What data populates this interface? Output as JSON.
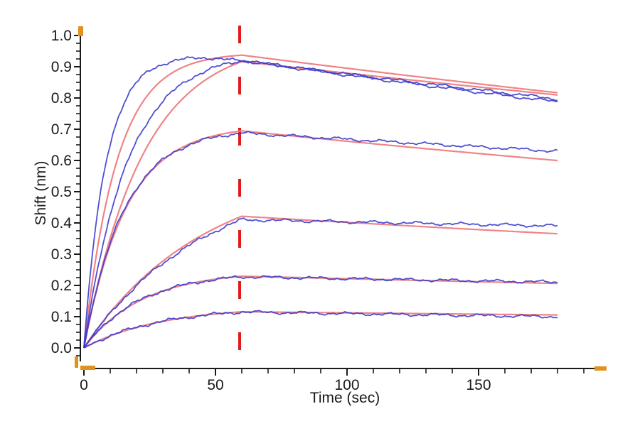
{
  "chart_data": {
    "type": "line",
    "title": "",
    "xlabel": "Time (sec)",
    "ylabel": "Shift (nm)",
    "xlim": [
      0,
      198
    ],
    "ylim": [
      -0.04,
      1.02
    ],
    "grid": "off",
    "legend": "none",
    "x_major_ticks": [
      0,
      50,
      100,
      150
    ],
    "x_tick_labels": [
      "0",
      "50",
      "100",
      "150"
    ],
    "x_minor_step": 10,
    "x_minor_max": 190,
    "y_major_ticks": [
      0,
      0.1,
      0.2,
      0.3,
      0.4,
      0.5,
      0.6,
      0.7,
      0.8,
      0.9,
      1.0
    ],
    "y_tick_labels": [
      "0.0",
      "0.1",
      "0.2",
      "0.3",
      "0.4",
      "0.5",
      "0.6",
      "0.7",
      "0.8",
      "0.9",
      "1.0"
    ],
    "y_minor_step": 0.025,
    "association_end_sec": 60,
    "time_end_sec": 180,
    "marker_line": {
      "time_sec": 60,
      "style": "dashed",
      "color": "#e31a1a"
    },
    "colors": {
      "data_trace": "#3c3ccd",
      "fit_trace": "#ee7d80",
      "axis": "#1a1a1a",
      "range_handle": "#e0921f",
      "background": "#ffffff"
    },
    "series": [
      {
        "id": "trace-1",
        "association": {
          "amplitude": 0.934,
          "k_obs": 0.12,
          "droop_start": 42,
          "droop_amount": 0.013
        },
        "fit_association": {
          "amplitude": 0.945,
          "k_obs": 0.08
        },
        "shift_at_60s": {
          "data": 0.921,
          "fit": 0.925
        },
        "shift_at_180s": {
          "data": 0.788,
          "fit": 0.806
        }
      },
      {
        "id": "trace-2",
        "association": {
          "amplitude": 0.9455,
          "k_obs": 0.06
        },
        "fit_association": {
          "amplitude": 0.987,
          "k_obs": 0.044
        },
        "shift_at_60s": {
          "data": 0.92,
          "fit": 0.917
        },
        "shift_at_180s": {
          "data": 0.797,
          "fit": 0.81
        }
      },
      {
        "id": "trace-3",
        "association": {
          "amplitude": 0.702,
          "k_obs": 0.065
        },
        "fit_association": {
          "amplitude": 0.712,
          "k_obs": 0.062
        },
        "shift_at_60s": {
          "data": 0.688,
          "fit": 0.695
        },
        "shift_at_180s": {
          "data": 0.63,
          "fit": 0.6
        }
      },
      {
        "id": "trace-4",
        "association": {
          "amplitude": 0.56,
          "k_obs": 0.022
        },
        "fit_association": {
          "amplitude": 0.575,
          "k_obs": 0.022
        },
        "shift_at_60s": {
          "data": 0.41,
          "fit": 0.421
        },
        "shift_at_180s": {
          "data": 0.39,
          "fit": 0.365
        }
      },
      {
        "id": "trace-5",
        "association": {
          "amplitude": 0.242,
          "k_obs": 0.047
        },
        "fit_association": {
          "amplitude": 0.246,
          "k_obs": 0.045
        },
        "shift_at_60s": {
          "data": 0.227,
          "fit": 0.228
        },
        "shift_at_180s": {
          "data": 0.21,
          "fit": 0.205
        }
      },
      {
        "id": "trace-6",
        "association": {
          "amplitude": 0.131,
          "k_obs": 0.035
        },
        "fit_association": {
          "amplitude": 0.133,
          "k_obs": 0.034
        },
        "shift_at_60s": {
          "data": 0.115,
          "fit": 0.114
        },
        "shift_at_180s": {
          "data": 0.1,
          "fit": 0.104
        }
      }
    ]
  }
}
